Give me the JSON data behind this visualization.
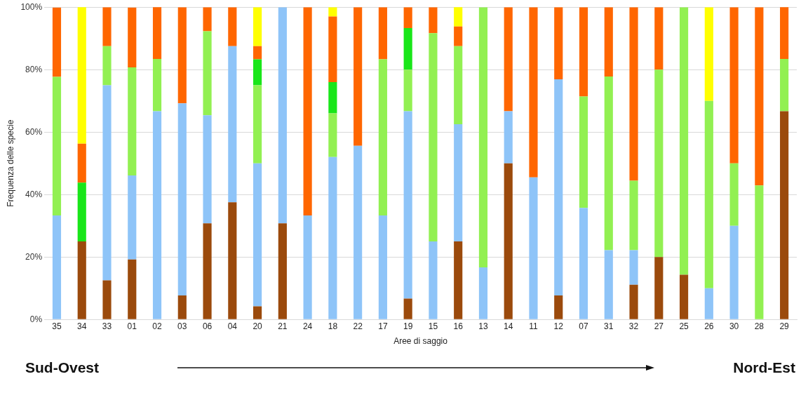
{
  "chart_data": {
    "type": "bar",
    "stacked": true,
    "xlabel": "Aree di saggio",
    "ylabel": "Frequenza delle specie",
    "categories": [
      "35",
      "34",
      "33",
      "01",
      "02",
      "03",
      "06",
      "04",
      "20",
      "21",
      "24",
      "18",
      "22",
      "17",
      "19",
      "15",
      "16",
      "13",
      "14",
      "11",
      "12",
      "07",
      "31",
      "32",
      "27",
      "25",
      "26",
      "30",
      "28",
      "29"
    ],
    "series": [
      {
        "color": "#9b4a0c",
        "values": [
          0,
          25,
          12.5,
          19.2,
          0,
          7.7,
          30.8,
          37.5,
          4.2,
          30.8,
          0,
          0,
          0,
          0,
          6.7,
          0,
          25,
          0,
          50,
          0,
          7.7,
          0,
          0,
          11.1,
          20,
          14.3,
          0,
          0,
          0,
          66.7
        ]
      },
      {
        "color": "#8ec4f8",
        "values": [
          33.3,
          0,
          62.5,
          26.9,
          66.7,
          61.5,
          34.6,
          50,
          45.8,
          69.2,
          33.3,
          52,
          55.6,
          33.3,
          60,
          25,
          37.5,
          16.7,
          16.7,
          45.5,
          69.2,
          35.7,
          22.2,
          11.1,
          0,
          0,
          10,
          30,
          0,
          0
        ]
      },
      {
        "color": "#92f052",
        "values": [
          44.4,
          0,
          12.5,
          34.6,
          16.7,
          0,
          26.9,
          0,
          25,
          0,
          0,
          14,
          0,
          50,
          13.3,
          66.7,
          25,
          83.3,
          0,
          0,
          0,
          35.7,
          55.6,
          22.2,
          60,
          85.7,
          60,
          20,
          42.9,
          16.7
        ]
      },
      {
        "color": "#19e619",
        "values": [
          0,
          18.8,
          0,
          0,
          0,
          0,
          0,
          0,
          8.3,
          0,
          0,
          10,
          0,
          0,
          13.3,
          0,
          0,
          0,
          0,
          0,
          0,
          0,
          0,
          0,
          0,
          0,
          0,
          0,
          0,
          0
        ]
      },
      {
        "color": "#ff6600",
        "values": [
          22.2,
          12.5,
          12.5,
          19.2,
          16.7,
          30.8,
          7.7,
          12.5,
          4.2,
          0,
          66.7,
          21,
          44.4,
          16.7,
          6.7,
          8.3,
          6.3,
          0,
          33.3,
          54.5,
          23.1,
          28.6,
          22.2,
          55.6,
          20,
          0,
          0,
          50,
          57.1,
          16.7
        ]
      },
      {
        "color": "#ffff00",
        "values": [
          0,
          43.8,
          0,
          0,
          0,
          0,
          0,
          0,
          12.5,
          0,
          0,
          3,
          0,
          0,
          0,
          0,
          6.3,
          0,
          0,
          0,
          0,
          0,
          0,
          0,
          0,
          0,
          30,
          0,
          0,
          0
        ]
      }
    ],
    "ylim": [
      0,
      100
    ],
    "yticks": [
      {
        "value": 0,
        "label": "0%"
      },
      {
        "value": 20,
        "label": "20%"
      },
      {
        "value": 40,
        "label": "40%"
      },
      {
        "value": 60,
        "label": "60%"
      },
      {
        "value": 80,
        "label": "80%"
      },
      {
        "value": 100,
        "label": "100%"
      }
    ],
    "grid": "y",
    "legend": false,
    "annotations": [
      "Sud-Ovest",
      "Nord-Est"
    ]
  }
}
